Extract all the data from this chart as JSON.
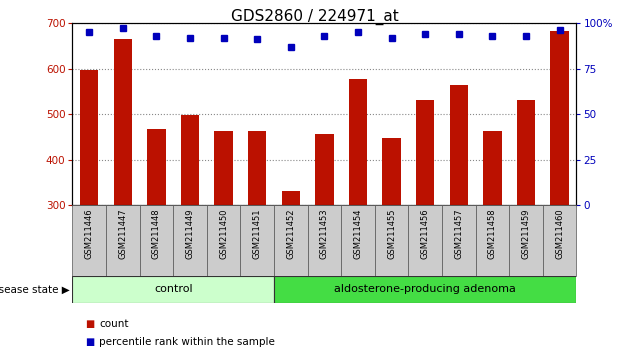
{
  "title": "GDS2860 / 224971_at",
  "samples": [
    "GSM211446",
    "GSM211447",
    "GSM211448",
    "GSM211449",
    "GSM211450",
    "GSM211451",
    "GSM211452",
    "GSM211453",
    "GSM211454",
    "GSM211455",
    "GSM211456",
    "GSM211457",
    "GSM211458",
    "GSM211459",
    "GSM211460"
  ],
  "counts": [
    597,
    665,
    468,
    499,
    463,
    462,
    332,
    456,
    578,
    447,
    530,
    564,
    463,
    530,
    682
  ],
  "percentiles": [
    95,
    97,
    93,
    92,
    92,
    91,
    87,
    93,
    95,
    92,
    94,
    94,
    93,
    93,
    96
  ],
  "ylim_left": [
    300,
    700
  ],
  "ylim_right": [
    0,
    100
  ],
  "yticks_left": [
    300,
    400,
    500,
    600,
    700
  ],
  "yticks_right": [
    0,
    25,
    50,
    75,
    100
  ],
  "bar_color": "#bb1100",
  "dot_color": "#0000bb",
  "bar_width": 0.55,
  "grid_color": "#888888",
  "control_count": 6,
  "control_label": "control",
  "adenoma_label": "aldosterone-producing adenoma",
  "control_bg": "#ccffcc",
  "adenoma_bg": "#44dd44",
  "sample_label_bg": "#cccccc",
  "disease_state_label": "disease state",
  "legend_count_label": "count",
  "legend_percentile_label": "percentile rank within the sample",
  "title_fontsize": 11,
  "tick_fontsize": 7.5,
  "sample_fontsize": 6.0,
  "disease_fontsize": 8,
  "legend_fontsize": 7.5
}
